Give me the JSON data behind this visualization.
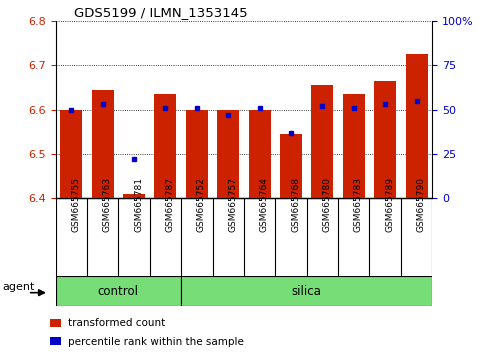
{
  "title": "GDS5199 / ILMN_1353145",
  "samples": [
    "GSM665755",
    "GSM665763",
    "GSM665781",
    "GSM665787",
    "GSM665752",
    "GSM665757",
    "GSM665764",
    "GSM665768",
    "GSM665780",
    "GSM665783",
    "GSM665789",
    "GSM665790"
  ],
  "groups": [
    "control",
    "control",
    "control",
    "control",
    "silica",
    "silica",
    "silica",
    "silica",
    "silica",
    "silica",
    "silica",
    "silica"
  ],
  "red_values": [
    6.6,
    6.645,
    6.41,
    6.635,
    6.6,
    6.6,
    6.6,
    6.545,
    6.655,
    6.635,
    6.665,
    6.725
  ],
  "blue_values": [
    50,
    53,
    22,
    51,
    51,
    47,
    51,
    37,
    52,
    51,
    53,
    55
  ],
  "ylim_left": [
    6.4,
    6.8
  ],
  "ylim_right": [
    0,
    100
  ],
  "yticks_left": [
    6.4,
    6.5,
    6.6,
    6.7,
    6.8
  ],
  "yticks_right": [
    0,
    25,
    50,
    75,
    100
  ],
  "ytick_labels_right": [
    "0",
    "25",
    "50",
    "75",
    "100%"
  ],
  "bar_color": "#cc2200",
  "dot_color": "#0000cc",
  "bar_bottom": 6.4,
  "control_color": "#77dd77",
  "silica_color": "#77dd77",
  "agent_label": "agent",
  "legend_red": "transformed count",
  "legend_blue": "percentile rank within the sample",
  "tick_label_color_left": "#cc2200",
  "tick_label_color_right": "#0000cc",
  "bar_width": 0.7,
  "grey_box_color": "#c8c8c8",
  "n_control": 4,
  "n_silica": 8
}
